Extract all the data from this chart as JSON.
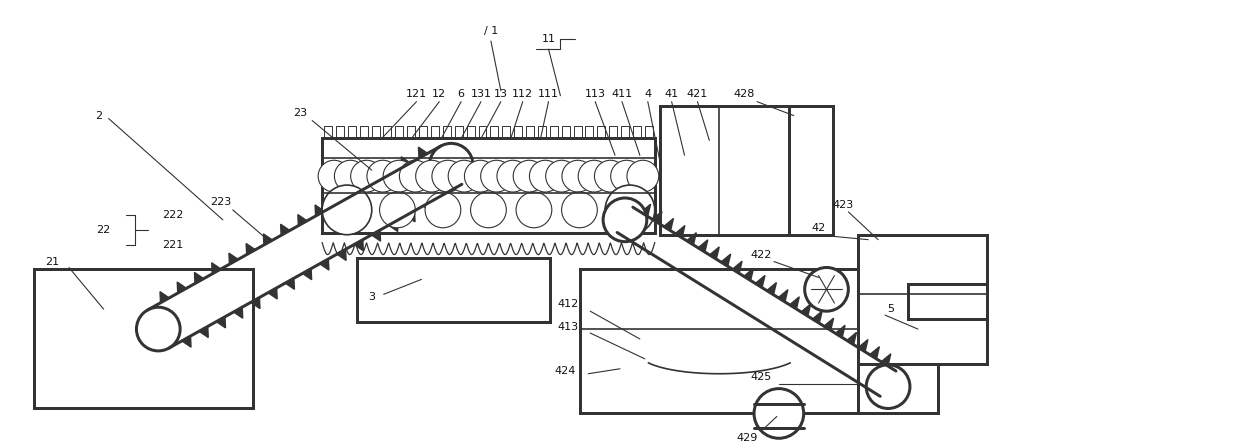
{
  "bg_color": "#ffffff",
  "line_color": "#333333",
  "lw": 1.2,
  "fig_width": 12.4,
  "fig_height": 4.46,
  "dpi": 100
}
